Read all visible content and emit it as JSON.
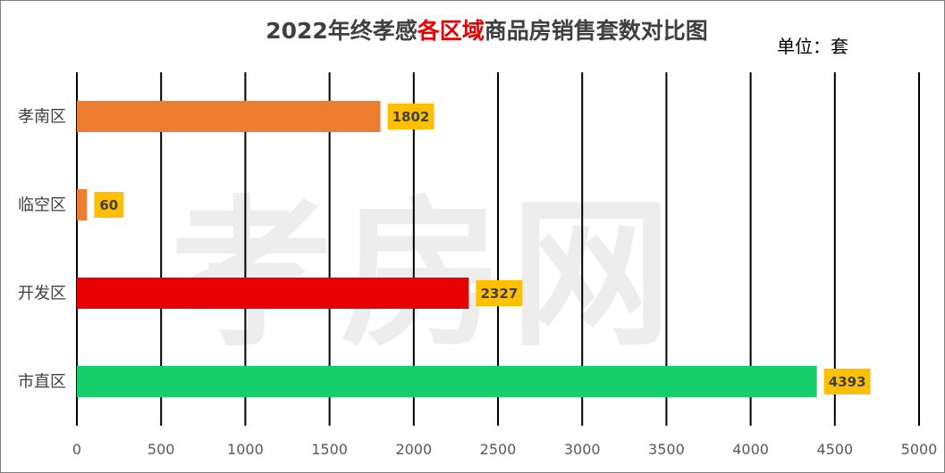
{
  "title": {
    "prefix": "2022年终孝感",
    "highlight": "各区域",
    "suffix": "商品房销售套数对比图"
  },
  "unit_label": "单位：套",
  "watermark": "孝房网",
  "colors": {
    "highlight": "#e80000",
    "label_box": "#ffc000"
  },
  "chart_data": {
    "type": "bar",
    "orientation": "horizontal",
    "categories": [
      "孝南区",
      "临空区",
      "开发区",
      "市直区"
    ],
    "values": [
      1802,
      60,
      2327,
      4393
    ],
    "bar_colors": [
      "#ed7d31",
      "#ed7d31",
      "#e60000",
      "#16ce6a"
    ],
    "data_labels": [
      "1802",
      "60",
      "2327",
      "4393"
    ],
    "xlim": [
      0,
      5000
    ],
    "x_ticks": [
      0,
      500,
      1000,
      1500,
      2000,
      2500,
      3000,
      3500,
      4000,
      4500,
      5000
    ],
    "grid": true,
    "legend": "none"
  }
}
